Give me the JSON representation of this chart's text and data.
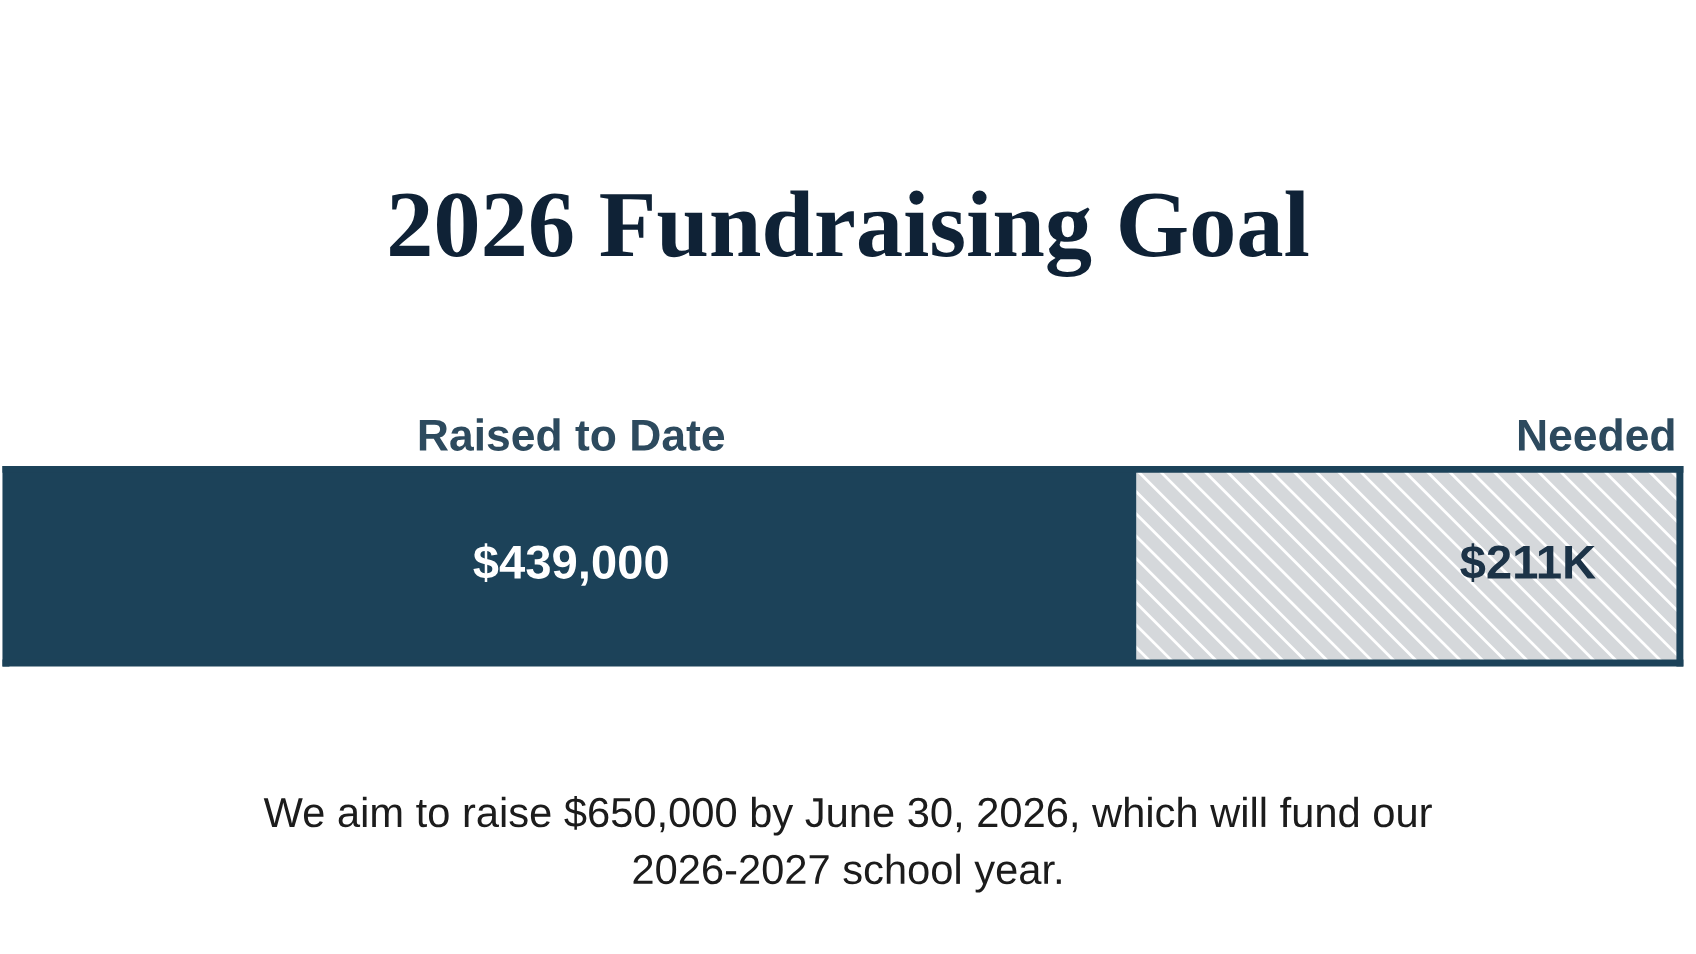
{
  "chart_data": {
    "type": "bar",
    "orientation": "horizontal",
    "stacked": true,
    "title": "2026 Fundraising Goal",
    "categories": [
      null
    ],
    "xlim": [
      0,
      650000
    ],
    "legend": false,
    "series": [
      {
        "name": "Raised to Date",
        "color": "#1c4259",
        "values": [
          439000
        ],
        "value_labels": [
          "$439,000"
        ]
      },
      {
        "name": "Needed",
        "color": "#d5d8db",
        "values": [
          211000
        ],
        "value_labels": [
          "$211K"
        ]
      }
    ],
    "annotations": [
      "We aim to raise $650,000 by June 30, 2026, which will fund our\n2026-2027 school year."
    ]
  }
}
